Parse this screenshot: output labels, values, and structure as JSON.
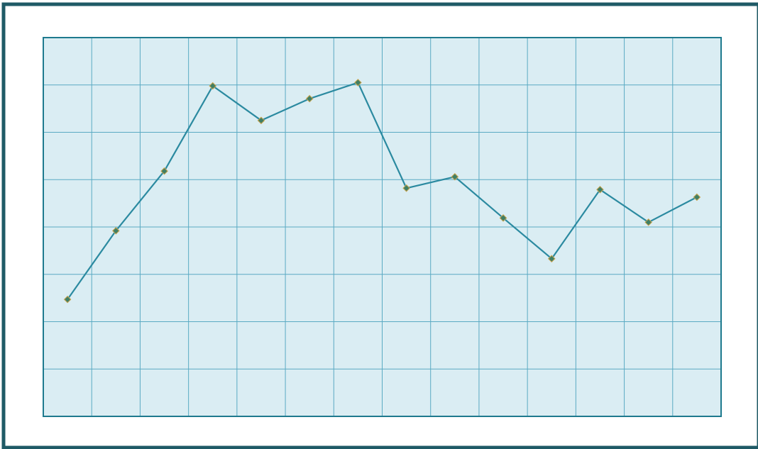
{
  "chart_data": {
    "type": "line",
    "title": "",
    "xlabel": "",
    "ylabel": "",
    "x": [
      1,
      2,
      3,
      4,
      5,
      6,
      7,
      8,
      9,
      10,
      11,
      12,
      13,
      14
    ],
    "xlim": [
      0.5,
      14.5
    ],
    "ylim": [
      0,
      8
    ],
    "grid": true,
    "x_gridlines": 14,
    "y_gridlines": 8,
    "legend": "none",
    "series": [
      {
        "values": [
          2.47,
          3.92,
          5.18,
          6.98,
          6.25,
          6.71,
          7.05,
          4.82,
          5.06,
          4.19,
          3.33,
          4.79,
          4.1,
          4.63
        ]
      }
    ]
  },
  "colors": {
    "frame_border": "#1f5a66",
    "plot_background": "#daedf3",
    "grid": "#5aaac3",
    "axes_border": "#1e7a8e",
    "line": "#2b8aa0",
    "marker_fill": "#3f7f65",
    "marker_stroke": "#c9a24a"
  }
}
